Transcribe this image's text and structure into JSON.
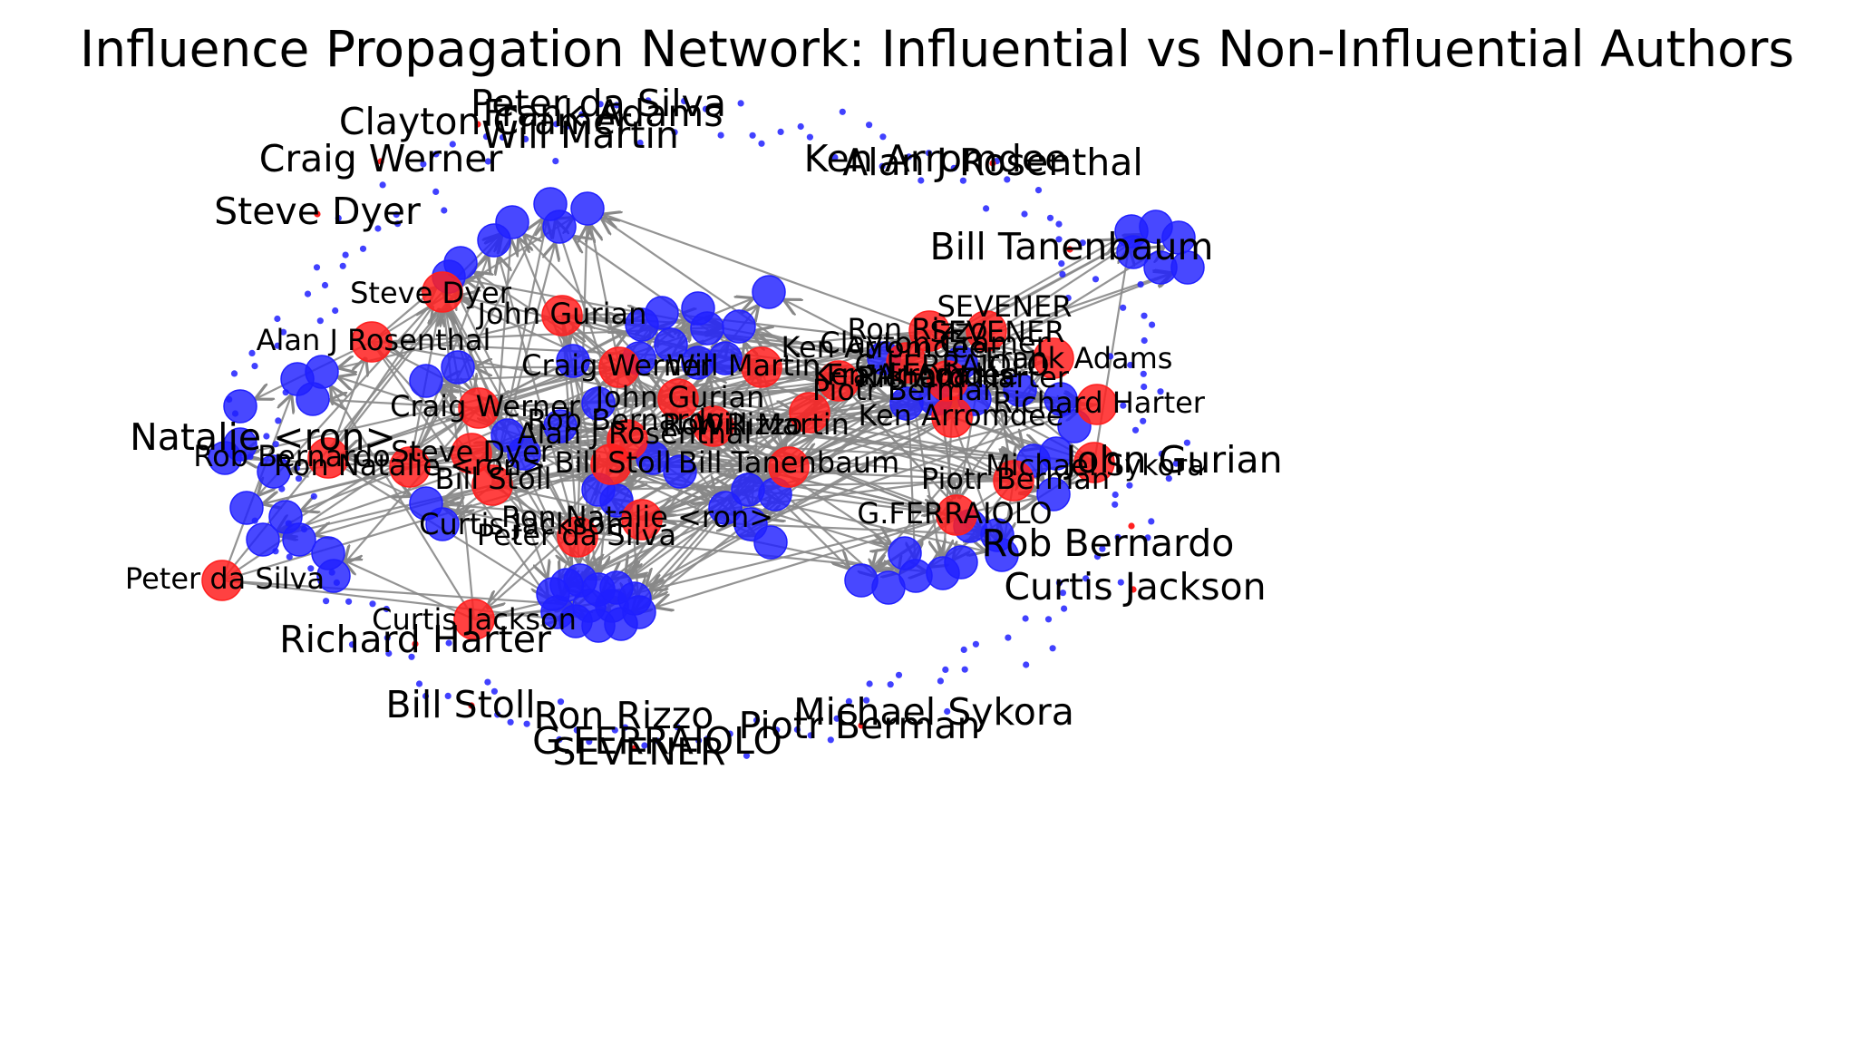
{
  "title": "Influence Propagation Network: Influential vs Non-Influential Authors",
  "colors": {
    "influential": "#ff2020",
    "non_influential": "#2020ff",
    "edge": "#888888",
    "text": "#000000"
  },
  "inner_labels": [
    "Steve Dyer",
    "John Gurian",
    "Alan J Rosenthal",
    "Craig Werner",
    "Craig Werner",
    "John Gurian",
    "Rob Bernardo",
    "Ron Rizzo",
    "Alan J Rosenthal",
    "Rob Bernardo",
    "Ron Natalie <ron>",
    "Steve Dyer",
    "Bill Stoll",
    "Bill Stoll",
    "Bill Tanenbaum",
    "Will Martin",
    "Will Martin",
    "Ken Arromdee",
    "Ron Rizzo",
    "Clayton Cramer",
    "SEVENER",
    "SEVENER",
    "Ken Arromdee",
    "G.FERRAIOLO",
    "Frank Adams",
    "Richard Harter",
    "Piotr Berman",
    "Frank Adams",
    "Richard Harter",
    "Ken Arromdee",
    "Michael Sykora",
    "Piotr Berman",
    "G.FERRAIOLO",
    "Ron Natalie <ron>",
    "Curtis Jackson",
    "Peter da Silva",
    "Peter da Silva",
    "Curtis Jackson"
  ],
  "outer_labels": [
    "Peter da Silva",
    "Frank Adams",
    "Clayton Cramer",
    "Will Martin",
    "Craig Werner",
    "Steve Dyer",
    "Ken Arromdee",
    "Alan J Rosenthal",
    "Bill Tanenbaum",
    "Natalie <ron>",
    "John Gurian",
    "Rob Bernardo",
    "Curtis Jackson",
    "Richard Harter",
    "Michael Sykora",
    "Bill Stoll",
    "Ron Rizzo",
    "G.FERRAIOLO",
    "Piotr Berman",
    "SEVENER"
  ]
}
